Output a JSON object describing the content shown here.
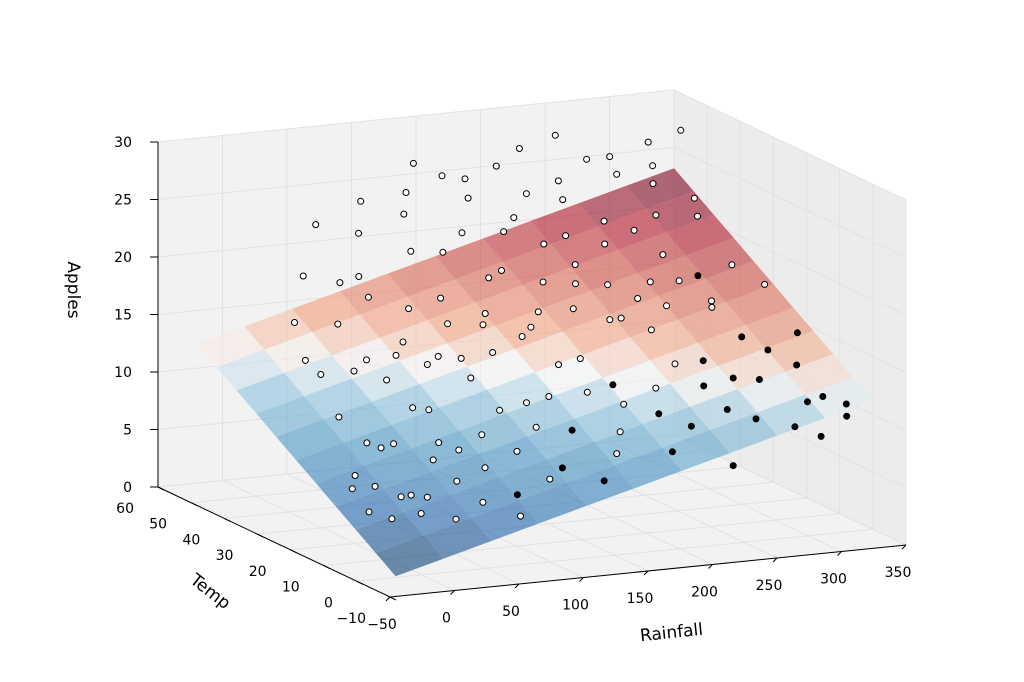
{
  "chart_data": {
    "type": "scatter",
    "subtype": "3d-scatter-with-regression-plane",
    "title": "",
    "xlabel": "Rainfall",
    "ylabel": "Temp",
    "zlabel": "Apples",
    "xlim": [
      -50,
      350
    ],
    "ylim": [
      -10,
      60
    ],
    "zlim": [
      0,
      30
    ],
    "x_ticks": [
      "−50",
      "0",
      "50",
      "100",
      "150",
      "200",
      "250",
      "300",
      "350"
    ],
    "y_ticks": [
      "−10",
      "0",
      "10",
      "20",
      "30",
      "40",
      "50",
      "60"
    ],
    "z_ticks": [
      "0",
      "5",
      "10",
      "15",
      "20",
      "25",
      "30"
    ],
    "grid": true,
    "colormap": "RdBu_r",
    "surface_fit": {
      "intercept": 0.7,
      "rainfall_coef": 0.03,
      "temp_coef": 0.2
    },
    "colors": {
      "points_above_plane": "#ffffff",
      "points_below_plane": "#000000",
      "pane_color": "#f2f2f2",
      "grid_color": "#e2e2e2"
    },
    "points": {
      "columns": [
        "rainfall",
        "temp",
        "apples"
      ],
      "values": [
        [
          -20,
          8,
          4.6
        ],
        [
          -15,
          15,
          5.6
        ],
        [
          -10,
          5,
          4.3
        ],
        [
          -5,
          12,
          6.1
        ],
        [
          0,
          20,
          5.9
        ],
        [
          5,
          2,
          5.0
        ],
        [
          8,
          28,
          9.8
        ],
        [
          10,
          10,
          5.3
        ],
        [
          12,
          35,
          12.5
        ],
        [
          15,
          18,
          8.4
        ],
        [
          18,
          42,
          12.7
        ],
        [
          20,
          6,
          5.7
        ],
        [
          22,
          25,
          7.8
        ],
        [
          25,
          48,
          15.1
        ],
        [
          28,
          14,
          4.7
        ],
        [
          30,
          32,
          13.0
        ],
        [
          32,
          2,
          4.2
        ],
        [
          35,
          22,
          8.0
        ],
        [
          38,
          40,
          15.9
        ],
        [
          40,
          12,
          7.9
        ],
        [
          42,
          52,
          18.4
        ],
        [
          45,
          28,
          12.6
        ],
        [
          48,
          8,
          6.5
        ],
        [
          50,
          36,
          13.2
        ],
        [
          52,
          18,
          11.3
        ],
        [
          55,
          46,
          18.5
        ],
        [
          58,
          4,
          5.1
        ],
        [
          60,
          26,
          10.3
        ],
        [
          62,
          56,
          22.1
        ],
        [
          65,
          14,
          8.2
        ],
        [
          68,
          32,
          15.1
        ],
        [
          70,
          22,
          7.7
        ],
        [
          72,
          44,
          17.3
        ],
        [
          75,
          10,
          7.1
        ],
        [
          78,
          38,
          13.0
        ],
        [
          80,
          50,
          18.2
        ],
        [
          82,
          2,
          3.9
        ],
        [
          85,
          28,
          14.2
        ],
        [
          88,
          16,
          9.0
        ],
        [
          90,
          54,
          21.3
        ],
        [
          92,
          34,
          12.6
        ],
        [
          95,
          8,
          4.8
        ],
        [
          98,
          42,
          16.3
        ],
        [
          100,
          24,
          12.7
        ],
        [
          102,
          58,
          23.4
        ],
        [
          105,
          12,
          7.9
        ],
        [
          108,
          30,
          13.5
        ],
        [
          110,
          46,
          20.6
        ],
        [
          112,
          20,
          10.3
        ],
        [
          115,
          6,
          6.2
        ],
        [
          118,
          38,
          15.3
        ],
        [
          120,
          52,
          22.9
        ],
        [
          122,
          26,
          14.4
        ],
        [
          125,
          14,
          9.5
        ],
        [
          128,
          44,
          16.6
        ],
        [
          130,
          32,
          15.9
        ],
        [
          132,
          56,
          24.1
        ],
        [
          135,
          10,
          6.4
        ],
        [
          138,
          22,
          10.4
        ],
        [
          140,
          48,
          19.9
        ],
        [
          142,
          36,
          16.2
        ],
        [
          145,
          18,
          11.4
        ],
        [
          148,
          60,
          25.9
        ],
        [
          150,
          28,
          15.2
        ],
        [
          152,
          4,
          5.9
        ],
        [
          155,
          40,
          18.6
        ],
        [
          158,
          16,
          8.6
        ],
        [
          160,
          50,
          21.1
        ],
        [
          162,
          30,
          15.6
        ],
        [
          165,
          58,
          24.9
        ],
        [
          168,
          24,
          13.1
        ],
        [
          170,
          42,
          18.8
        ],
        [
          172,
          8,
          7.5
        ],
        [
          175,
          54,
          23.4
        ],
        [
          178,
          34,
          16.2
        ],
        [
          180,
          20,
          11.1
        ],
        [
          182,
          46,
          21.5
        ],
        [
          185,
          12,
          8.7
        ],
        [
          188,
          60,
          24.1
        ],
        [
          190,
          26,
          13.1
        ],
        [
          192,
          38,
          18.1
        ],
        [
          195,
          48,
          22.3
        ],
        [
          198,
          16,
          10.4
        ],
        [
          200,
          32,
          16.5
        ],
        [
          202,
          56,
          25.6
        ],
        [
          205,
          22,
          11.2
        ],
        [
          208,
          44,
          20.4
        ],
        [
          210,
          6,
          7.5
        ],
        [
          212,
          36,
          18.0
        ],
        [
          215,
          52,
          23.6
        ],
        [
          218,
          28,
          15.9
        ],
        [
          220,
          14,
          9.6
        ],
        [
          222,
          40,
          19.0
        ],
        [
          225,
          58,
          26.6
        ],
        [
          228,
          18,
          11.2
        ],
        [
          230,
          46,
          20.6
        ],
        [
          232,
          30,
          15.6
        ],
        [
          235,
          10,
          8.9
        ],
        [
          238,
          50,
          23.1
        ],
        [
          240,
          24,
          15.3
        ],
        [
          242,
          38,
          17.3
        ],
        [
          245,
          54,
          24.1
        ],
        [
          248,
          20,
          12.8
        ],
        [
          250,
          42,
          20.2
        ],
        [
          252,
          4,
          6.1
        ],
        [
          255,
          34,
          16.5
        ],
        [
          258,
          60,
          27.1
        ],
        [
          260,
          16,
          11.3
        ],
        [
          262,
          28,
          16.6
        ],
        [
          265,
          48,
          21.2
        ],
        [
          268,
          12,
          9.7
        ],
        [
          270,
          36,
          17.5
        ],
        [
          272,
          56,
          25.4
        ],
        [
          275,
          22,
          12.5
        ],
        [
          278,
          44,
          20.8
        ],
        [
          280,
          8,
          9.3
        ],
        [
          282,
          32,
          18.0
        ],
        [
          285,
          52,
          24.5
        ],
        [
          288,
          18,
          11.4
        ],
        [
          290,
          40,
          19.1
        ],
        [
          292,
          26,
          16.4
        ],
        [
          295,
          58,
          25.1
        ],
        [
          298,
          14,
          11.7
        ],
        [
          300,
          46,
          21.6
        ],
        [
          302,
          30,
          16.3
        ],
        [
          305,
          6,
          8.6
        ],
        [
          308,
          50,
          23.7
        ],
        [
          310,
          24,
          13.9
        ],
        [
          312,
          38,
          17.3
        ],
        [
          315,
          2,
          8.2
        ],
        [
          318,
          54,
          24.6
        ],
        [
          320,
          20,
          13.2
        ],
        [
          322,
          42,
          21.8
        ],
        [
          325,
          10,
          10.0
        ],
        [
          328,
          34,
          18.6
        ],
        [
          330,
          60,
          25.7
        ],
        [
          332,
          16,
          12.3
        ],
        [
          335,
          48,
          22.4
        ],
        [
          338,
          28,
          17.6
        ],
        [
          340,
          4,
          9.4
        ],
        [
          342,
          12,
          10.0
        ],
        [
          345,
          56,
          27.1
        ],
        [
          348,
          22,
          14.1
        ],
        [
          350,
          8,
          9.8
        ]
      ]
    }
  }
}
